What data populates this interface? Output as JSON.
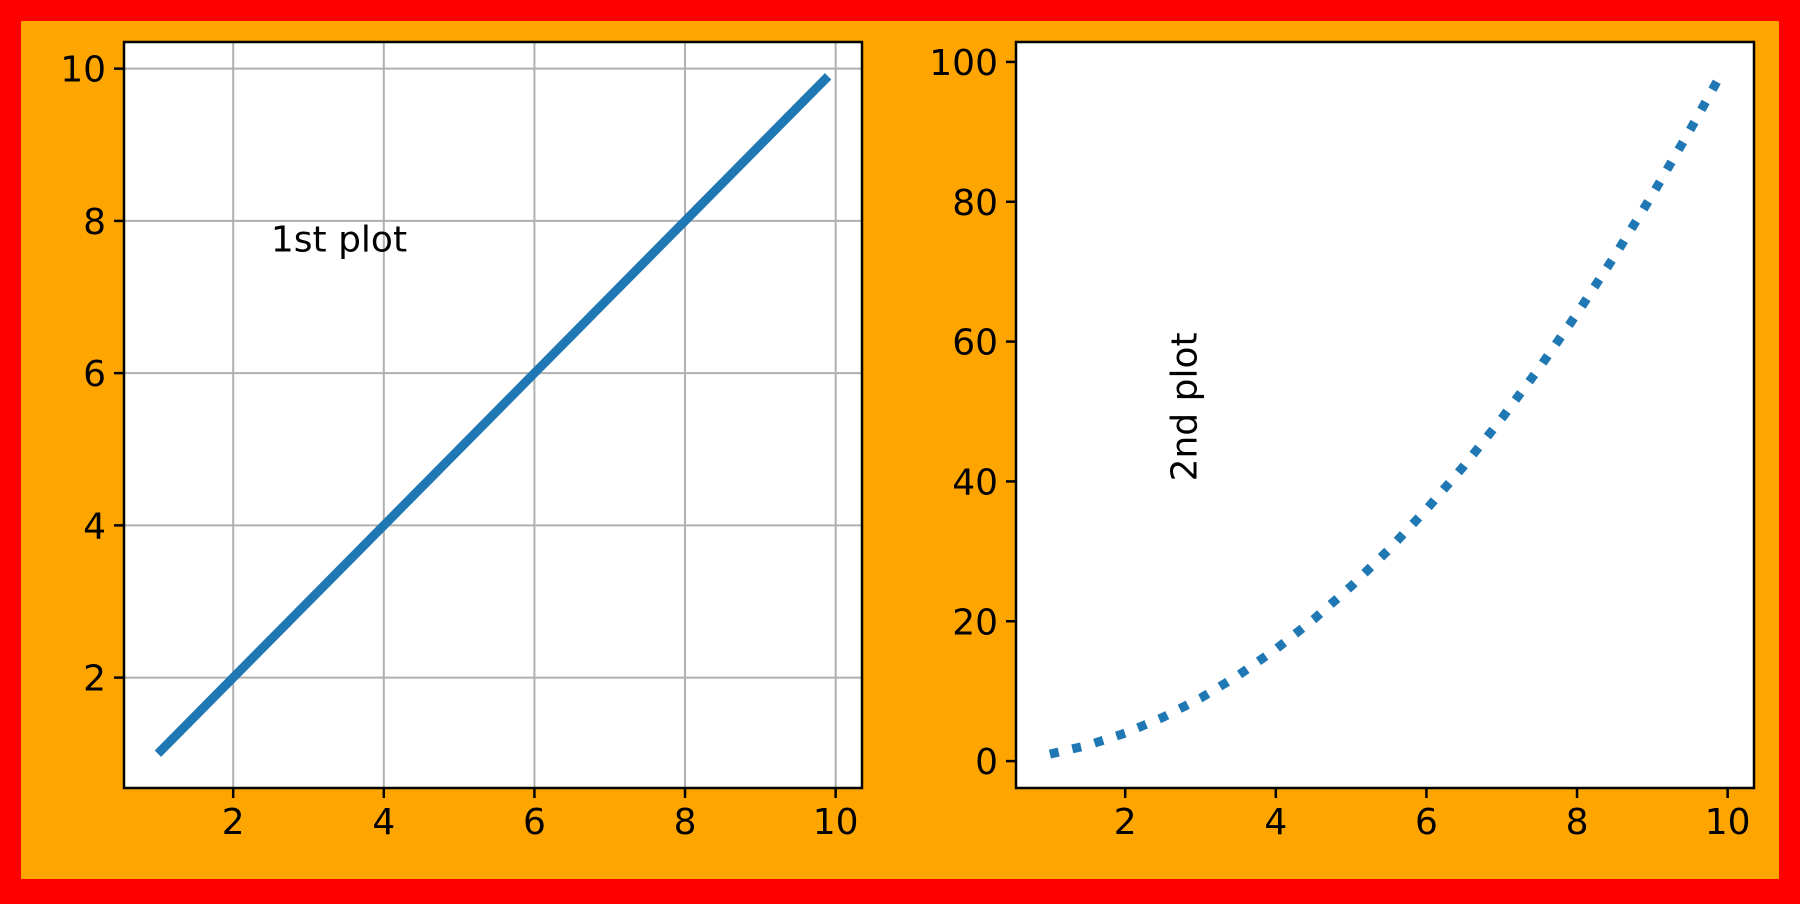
{
  "figure": {
    "border_color": "#ff0000",
    "background_color": "#ffa500",
    "plot_background": "#ffffff"
  },
  "chart_data": [
    {
      "type": "line",
      "x": [
        1,
        1.5,
        2,
        2.5,
        3,
        3.5,
        4,
        4.5,
        5,
        5.5,
        6,
        6.5,
        7,
        7.5,
        8,
        8.5,
        9,
        9.5,
        9.9
      ],
      "series": [
        {
          "values": [
            1,
            1.5,
            2,
            2.5,
            3,
            3.5,
            4,
            4.5,
            5,
            5.5,
            6,
            6.5,
            7,
            7.5,
            8,
            8.5,
            9,
            9.5,
            9.9
          ],
          "color": "#1f77b4",
          "line_style": "solid"
        }
      ],
      "xlim": [
        0.55,
        10.35
      ],
      "ylim": [
        0.55,
        10.35
      ],
      "xticks": [
        2,
        4,
        6,
        8,
        10
      ],
      "yticks": [
        2,
        4,
        6,
        8,
        10
      ],
      "grid": true,
      "annotation": {
        "text": "1st plot",
        "x": 2.5,
        "y": 7.6,
        "rotation": 0
      }
    },
    {
      "type": "line",
      "x": [
        1,
        1.5,
        2,
        2.5,
        3,
        3.5,
        4,
        4.5,
        5,
        5.5,
        6,
        6.5,
        7,
        7.5,
        8,
        8.5,
        9,
        9.5,
        9.9
      ],
      "series": [
        {
          "values": [
            1,
            2.25,
            4,
            6.25,
            9,
            12.25,
            16,
            20.25,
            25,
            30.25,
            36,
            42.25,
            49,
            56.25,
            64,
            72.25,
            81,
            90.25,
            98.01
          ],
          "color": "#1f77b4",
          "line_style": "dotted"
        }
      ],
      "xlim": [
        0.55,
        10.35
      ],
      "ylim": [
        -3.85,
        102.85
      ],
      "xticks": [
        2,
        4,
        6,
        8,
        10
      ],
      "yticks": [
        0,
        20,
        40,
        60,
        80,
        100
      ],
      "grid": false,
      "annotation": {
        "text": "2nd plot",
        "x": 2.95,
        "y": 40,
        "rotation": -90
      }
    }
  ]
}
